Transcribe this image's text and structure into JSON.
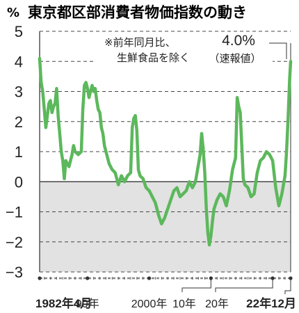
{
  "chart_data": {
    "type": "line",
    "title": "東京都区部消費者物価指数の動き",
    "y_unit": "%",
    "note_line1": "※前年同月比、",
    "note_line2": "生鮮食品を除く",
    "last_value": "4.0%",
    "last_value_note": "（速報値）",
    "ylim": [
      -3,
      5
    ],
    "yticks": [
      5,
      4,
      3,
      2,
      1,
      0,
      -1,
      -2,
      -3
    ],
    "ytick_labels": [
      "5",
      "4",
      "3",
      "2",
      "1",
      "0",
      "−1",
      "−2",
      "−3"
    ],
    "xlim": [
      "1982-04",
      "2022-12"
    ],
    "x_tick_labels": [
      {
        "label": "1982年4月",
        "date": "1982-04"
      },
      {
        "label": "90年",
        "date": "1990-01"
      },
      {
        "label": "2000年",
        "date": "2000-01"
      },
      {
        "label": "10年",
        "date": "2010-01"
      },
      {
        "label": "20年",
        "date": "2020-01"
      },
      {
        "label": "22年12月",
        "date": "2022-12"
      }
    ],
    "grid": true,
    "colors": {
      "line": "#5cb85c",
      "negative_fill": "#e2e2e2",
      "axis": "#555555",
      "grid": "#444444"
    },
    "series": [
      {
        "x": [
          "1982-04",
          "1982-07",
          "1982-10",
          "1983-01",
          "1983-04",
          "1983-07",
          "1983-10",
          "1984-01",
          "1984-04",
          "1984-07",
          "1984-10",
          "1985-01",
          "1985-04",
          "1985-07",
          "1985-10",
          "1986-01",
          "1986-04",
          "1986-07",
          "1986-10",
          "1987-01",
          "1987-04",
          "1987-07",
          "1987-10",
          "1988-01",
          "1988-07",
          "1989-01",
          "1989-04",
          "1989-07",
          "1989-10",
          "1990-01",
          "1990-04",
          "1990-07",
          "1990-10",
          "1991-01",
          "1991-04",
          "1991-07",
          "1991-10",
          "1992-01",
          "1992-04",
          "1992-07",
          "1992-10",
          "1993-01",
          "1993-07",
          "1994-01",
          "1994-07",
          "1995-01",
          "1995-07",
          "1996-01",
          "1996-07",
          "1997-01",
          "1997-04",
          "1997-07",
          "1997-10",
          "1998-01",
          "1998-04",
          "1998-07",
          "1999-01",
          "1999-07",
          "2000-01",
          "2000-07",
          "2001-01",
          "2001-07",
          "2002-01",
          "2002-07",
          "2003-01",
          "2003-07",
          "2004-01",
          "2004-07",
          "2005-01",
          "2005-07",
          "2006-01",
          "2006-07",
          "2007-01",
          "2007-07",
          "2008-01",
          "2008-04",
          "2008-07",
          "2008-10",
          "2009-01",
          "2009-04",
          "2009-07",
          "2009-10",
          "2010-01",
          "2010-04",
          "2010-07",
          "2011-01",
          "2011-07",
          "2012-01",
          "2012-07",
          "2013-01",
          "2013-07",
          "2014-01",
          "2014-04",
          "2014-07",
          "2014-10",
          "2015-01",
          "2015-04",
          "2015-07",
          "2016-01",
          "2016-07",
          "2017-01",
          "2017-07",
          "2018-01",
          "2018-07",
          "2019-01",
          "2019-07",
          "2020-01",
          "2020-07",
          "2021-01",
          "2021-07",
          "2022-01",
          "2022-04",
          "2022-07",
          "2022-10",
          "2022-12"
        ],
        "y": [
          4.1,
          3.3,
          3.0,
          2.4,
          1.8,
          2.2,
          2.6,
          2.7,
          2.3,
          2.5,
          2.6,
          3.1,
          2.2,
          1.6,
          1.0,
          0.7,
          0.1,
          0.7,
          0.6,
          0.5,
          0.7,
          0.9,
          1.2,
          1.0,
          0.9,
          1.0,
          2.4,
          3.2,
          3.3,
          3.1,
          2.8,
          3.0,
          3.2,
          3.0,
          3.1,
          2.7,
          2.4,
          2.3,
          1.8,
          1.6,
          1.2,
          1.0,
          0.6,
          0.4,
          0.3,
          -0.1,
          0.2,
          0.0,
          0.2,
          0.3,
          1.8,
          2.1,
          2.2,
          1.7,
          0.4,
          0.2,
          0.1,
          -0.2,
          -0.3,
          -0.5,
          -0.7,
          -1.1,
          -1.4,
          -1.2,
          -0.9,
          -0.6,
          -0.3,
          -0.2,
          -0.5,
          -0.4,
          -0.3,
          0.0,
          -0.2,
          0.0,
          0.6,
          0.9,
          1.6,
          1.1,
          0.3,
          -0.9,
          -1.7,
          -2.1,
          -1.8,
          -1.3,
          -0.9,
          -0.6,
          -0.4,
          -0.5,
          -0.8,
          -0.3,
          0.4,
          0.8,
          2.8,
          2.5,
          2.3,
          1.2,
          0.1,
          -0.1,
          -0.2,
          -0.5,
          -0.4,
          0.3,
          0.7,
          0.8,
          1.0,
          0.9,
          0.7,
          -0.2,
          -0.8,
          -0.4,
          0.2,
          1.0,
          2.1,
          3.4,
          4.0
        ]
      }
    ]
  }
}
